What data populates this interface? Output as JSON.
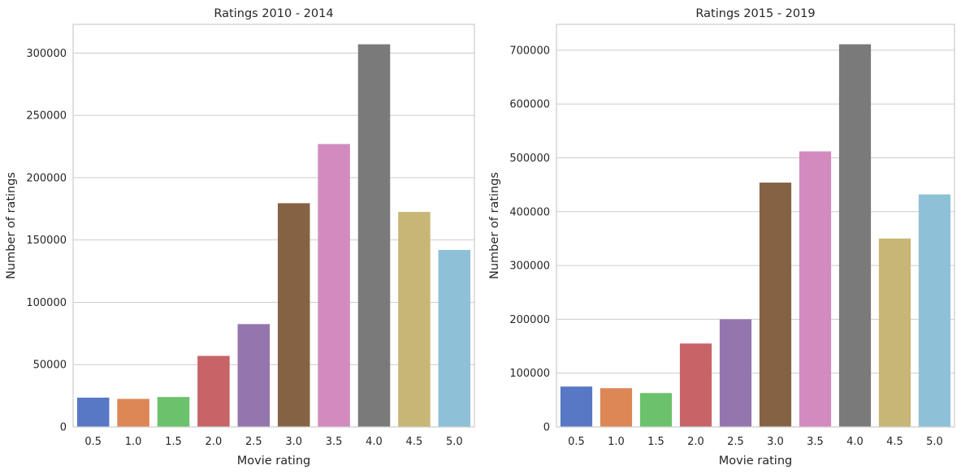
{
  "chart_data": [
    {
      "type": "bar",
      "title": "Ratings 2010 - 2014",
      "xlabel": "Movie rating",
      "ylabel": "Number of ratings",
      "categories": [
        "0.5",
        "1.0",
        "1.5",
        "2.0",
        "2.5",
        "3.0",
        "3.5",
        "4.0",
        "4.5",
        "5.0"
      ],
      "values": [
        23500,
        22500,
        24000,
        57000,
        82500,
        179500,
        227000,
        307000,
        172500,
        142000
      ],
      "yticks": [
        0,
        50000,
        100000,
        150000,
        200000,
        250000,
        300000
      ],
      "ytick_labels": [
        "0",
        "50000",
        "100000",
        "150000",
        "200000",
        "250000",
        "300000"
      ],
      "ylim": [
        0,
        323000
      ],
      "grid": "y"
    },
    {
      "type": "bar",
      "title": "Ratings 2015 - 2019",
      "xlabel": "Movie rating",
      "ylabel": "Number of ratings",
      "categories": [
        "0.5",
        "1.0",
        "1.5",
        "2.0",
        "2.5",
        "3.0",
        "3.5",
        "4.0",
        "4.5",
        "5.0"
      ],
      "values": [
        75000,
        72000,
        63000,
        155000,
        200000,
        454000,
        512000,
        711000,
        350000,
        432000
      ],
      "yticks": [
        0,
        100000,
        200000,
        300000,
        400000,
        500000,
        600000,
        700000
      ],
      "ytick_labels": [
        "0",
        "100000",
        "200000",
        "300000",
        "400000",
        "500000",
        "600000",
        "700000"
      ],
      "ylim": [
        0,
        748000
      ],
      "grid": "y"
    }
  ],
  "palette": [
    "#5778c4",
    "#dd8656",
    "#6cc16c",
    "#c76467",
    "#9575ae",
    "#866244",
    "#d28bbf",
    "#7a7a7a",
    "#c8b676",
    "#8ec0d8"
  ]
}
